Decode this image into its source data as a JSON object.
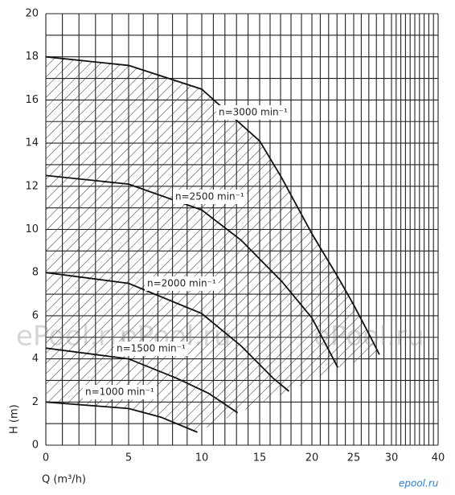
{
  "chart_data": {
    "type": "line",
    "xlabel": "Q (m³/h)",
    "ylabel": "H (m)",
    "xlim": [
      0,
      40
    ],
    "xticks": [
      0,
      5,
      10,
      15,
      20,
      25,
      30,
      40
    ],
    "ylim": [
      0,
      20
    ],
    "yticks": [
      0,
      2,
      4,
      6,
      8,
      10,
      12,
      14,
      16,
      18,
      20
    ],
    "grid": true,
    "color": "#111111",
    "series": [
      {
        "name": "n=3000 min⁻¹",
        "color": "#111111",
        "x": [
          0,
          5,
          10,
          15,
          17.1,
          20,
          23.1,
          25,
          27.1,
          28.4
        ],
        "values": [
          18,
          17.6,
          16.5,
          14.1,
          12.4,
          9.8,
          7.8,
          6.5,
          5.1,
          4.2
        ]
      },
      {
        "name": "n=2500 min⁻¹",
        "color": "#111111",
        "x": [
          0,
          5,
          10,
          13.4,
          17.1,
          20,
          23.1
        ],
        "values": [
          12.5,
          12.1,
          10.9,
          9.5,
          7.6,
          5.9,
          3.6
        ]
      },
      {
        "name": "n=2000 min⁻¹",
        "color": "#111111",
        "x": [
          0,
          5,
          10,
          13.4,
          16.3,
          17.8
        ],
        "values": [
          8.0,
          7.5,
          6.1,
          4.6,
          3.1,
          2.5
        ]
      },
      {
        "name": "n=1500 min⁻¹",
        "color": "#111111",
        "x": [
          0,
          5,
          8.3,
          10.6,
          13.1
        ],
        "values": [
          4.5,
          4.0,
          3.1,
          2.4,
          1.5
        ]
      },
      {
        "name": "n=1000 min⁻¹",
        "color": "#111111",
        "x": [
          0,
          5,
          7.2,
          9.7
        ],
        "values": [
          2.0,
          1.7,
          1.3,
          0.6
        ]
      }
    ],
    "watermark": "ePool.ru",
    "logo": "epool.ru"
  }
}
